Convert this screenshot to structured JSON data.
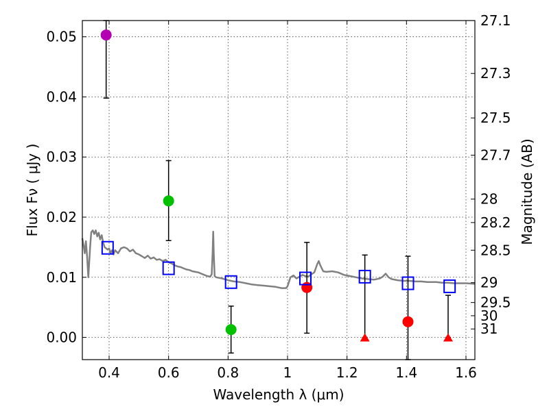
{
  "chart_data": {
    "type": "scatter",
    "xlabel": "Wavelength  λ (μm)",
    "ylabel": "Flux  Fν  ( μJy )",
    "ylabel_right": "Magnitude (AB)",
    "xlim": [
      0.31,
      1.63
    ],
    "ylim": [
      -0.0037,
      0.0527
    ],
    "x_ticks": [
      0.4,
      0.6,
      0.8,
      1.0,
      1.2,
      1.4,
      1.6
    ],
    "x_tick_labels": [
      "0.4",
      "0.6",
      "0.8",
      "1",
      "1.2",
      "1.4",
      "1.6"
    ],
    "y_ticks": [
      0.0,
      0.01,
      0.02,
      0.03,
      0.04,
      0.05
    ],
    "y_tick_labels": [
      "0.00",
      "0.01",
      "0.02",
      "0.03",
      "0.04",
      "0.05"
    ],
    "right_ticks": [
      {
        "label": "27.1",
        "flux": 0.0527
      },
      {
        "label": "27.3",
        "flux": 0.0439
      },
      {
        "label": "27.5",
        "flux": 0.0365
      },
      {
        "label": "27.7",
        "flux": 0.0303
      },
      {
        "label": "28",
        "flux": 0.023
      },
      {
        "label": "28.2",
        "flux": 0.0191
      },
      {
        "label": "28.5",
        "flux": 0.0145
      },
      {
        "label": "29",
        "flux": 0.0091
      },
      {
        "label": "29.5",
        "flux": 0.0058
      },
      {
        "label": "30",
        "flux": 0.0036
      },
      {
        "label": "31",
        "flux": 0.0014
      }
    ],
    "grid": true,
    "model_sed": {
      "color": "#808080",
      "points": [
        [
          0.31,
          0.0165
        ],
        [
          0.315,
          0.015
        ],
        [
          0.318,
          0.014
        ],
        [
          0.322,
          0.016
        ],
        [
          0.326,
          0.0135
        ],
        [
          0.33,
          0.01
        ],
        [
          0.336,
          0.015
        ],
        [
          0.34,
          0.0175
        ],
        [
          0.345,
          0.0178
        ],
        [
          0.35,
          0.0172
        ],
        [
          0.355,
          0.0178
        ],
        [
          0.36,
          0.0168
        ],
        [
          0.365,
          0.0174
        ],
        [
          0.37,
          0.0163
        ],
        [
          0.375,
          0.017
        ],
        [
          0.38,
          0.0158
        ],
        [
          0.385,
          0.015
        ],
        [
          0.39,
          0.0148
        ],
        [
          0.395,
          0.0146
        ],
        [
          0.4,
          0.0148
        ],
        [
          0.405,
          0.014
        ],
        [
          0.41,
          0.0145
        ],
        [
          0.415,
          0.0138
        ],
        [
          0.42,
          0.0145
        ],
        [
          0.43,
          0.014
        ],
        [
          0.44,
          0.0148
        ],
        [
          0.45,
          0.015
        ],
        [
          0.46,
          0.0148
        ],
        [
          0.47,
          0.0143
        ],
        [
          0.48,
          0.0146
        ],
        [
          0.49,
          0.014
        ],
        [
          0.5,
          0.0138
        ],
        [
          0.51,
          0.0135
        ],
        [
          0.52,
          0.0132
        ],
        [
          0.53,
          0.0136
        ],
        [
          0.54,
          0.0131
        ],
        [
          0.55,
          0.0133
        ],
        [
          0.56,
          0.0129
        ],
        [
          0.57,
          0.013
        ],
        [
          0.58,
          0.0127
        ],
        [
          0.59,
          0.0129
        ],
        [
          0.6,
          0.0125
        ],
        [
          0.61,
          0.0123
        ],
        [
          0.62,
          0.012
        ],
        [
          0.63,
          0.0118
        ],
        [
          0.64,
          0.0117
        ],
        [
          0.65,
          0.0115
        ],
        [
          0.66,
          0.0113
        ],
        [
          0.67,
          0.0112
        ],
        [
          0.68,
          0.011
        ],
        [
          0.69,
          0.0109
        ],
        [
          0.7,
          0.0108
        ],
        [
          0.71,
          0.0106
        ],
        [
          0.72,
          0.0104
        ],
        [
          0.73,
          0.0102
        ],
        [
          0.74,
          0.0101
        ],
        [
          0.745,
          0.0105
        ],
        [
          0.748,
          0.014
        ],
        [
          0.75,
          0.0176
        ],
        [
          0.752,
          0.014
        ],
        [
          0.755,
          0.0102
        ],
        [
          0.76,
          0.01
        ],
        [
          0.78,
          0.0098
        ],
        [
          0.8,
          0.0095
        ],
        [
          0.82,
          0.0093
        ],
        [
          0.84,
          0.0092
        ],
        [
          0.86,
          0.009
        ],
        [
          0.88,
          0.0088
        ],
        [
          0.9,
          0.0087
        ],
        [
          0.92,
          0.0086
        ],
        [
          0.94,
          0.0085
        ],
        [
          0.96,
          0.0084
        ],
        [
          0.98,
          0.0082
        ],
        [
          0.995,
          0.0082
        ],
        [
          1.0,
          0.0085
        ],
        [
          1.01,
          0.01
        ],
        [
          1.02,
          0.0103
        ],
        [
          1.03,
          0.0098
        ],
        [
          1.04,
          0.0101
        ],
        [
          1.05,
          0.0104
        ],
        [
          1.06,
          0.0102
        ],
        [
          1.07,
          0.0101
        ],
        [
          1.08,
          0.0105
        ],
        [
          1.09,
          0.0108
        ],
        [
          1.1,
          0.0122
        ],
        [
          1.105,
          0.0127
        ],
        [
          1.11,
          0.012
        ],
        [
          1.12,
          0.011
        ],
        [
          1.13,
          0.0109
        ],
        [
          1.15,
          0.011
        ],
        [
          1.17,
          0.0108
        ],
        [
          1.19,
          0.0104
        ],
        [
          1.21,
          0.0102
        ],
        [
          1.23,
          0.01
        ],
        [
          1.25,
          0.0098
        ],
        [
          1.27,
          0.0097
        ],
        [
          1.29,
          0.0096
        ],
        [
          1.31,
          0.0098
        ],
        [
          1.32,
          0.0101
        ],
        [
          1.33,
          0.0106
        ],
        [
          1.34,
          0.01
        ],
        [
          1.35,
          0.0097
        ],
        [
          1.37,
          0.0095
        ],
        [
          1.39,
          0.0094
        ],
        [
          1.41,
          0.0094
        ],
        [
          1.43,
          0.0093
        ],
        [
          1.45,
          0.0093
        ],
        [
          1.47,
          0.0092
        ],
        [
          1.5,
          0.0092
        ],
        [
          1.52,
          0.0091
        ],
        [
          1.54,
          0.0091
        ],
        [
          1.56,
          0.009
        ],
        [
          1.58,
          0.009
        ],
        [
          1.6,
          0.009
        ],
        [
          1.63,
          0.0089
        ]
      ]
    },
    "series": [
      {
        "marker": "circle",
        "color": "#b300b3",
        "filled": true,
        "points": [
          {
            "x": 0.39,
            "y": 0.0503,
            "yerr_lo": 0.0398,
            "yerr_hi": 0.0527
          }
        ]
      },
      {
        "marker": "circle",
        "color": "#00c000",
        "filled": true,
        "points": [
          {
            "x": 0.6,
            "y": 0.0227,
            "yerr_lo": 0.0161,
            "yerr_hi": 0.0294
          },
          {
            "x": 0.81,
            "y": 0.0013,
            "yerr_lo": -0.0026,
            "yerr_hi": 0.0052
          }
        ]
      },
      {
        "marker": "circle",
        "color": "#ff0000",
        "filled": true,
        "points": [
          {
            "x": 1.065,
            "y": 0.0083,
            "yerr_lo": 0.0007,
            "yerr_hi": 0.0158
          },
          {
            "x": 1.405,
            "y": 0.0026,
            "yerr_lo": -0.0037,
            "yerr_hi": 0.0135
          }
        ]
      },
      {
        "marker": "triangle",
        "color": "#ff0000",
        "filled": true,
        "points": [
          {
            "x": 1.26,
            "y": 0.0,
            "yerr_lo": 0.0,
            "yerr_hi": 0.0137
          },
          {
            "x": 1.54,
            "y": 0.0,
            "yerr_lo": 0.0,
            "yerr_hi": 0.007
          }
        ]
      },
      {
        "marker": "square",
        "color": "#0000ff",
        "filled": false,
        "points": [
          {
            "x": 0.395,
            "y": 0.0149
          },
          {
            "x": 0.6,
            "y": 0.0115
          },
          {
            "x": 0.81,
            "y": 0.0092
          },
          {
            "x": 1.06,
            "y": 0.0098
          },
          {
            "x": 1.26,
            "y": 0.0101
          },
          {
            "x": 1.405,
            "y": 0.009
          },
          {
            "x": 1.545,
            "y": 0.0085
          }
        ]
      }
    ]
  }
}
